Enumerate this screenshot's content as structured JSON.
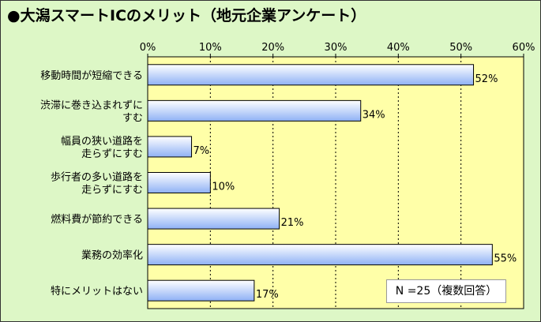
{
  "title": "●大潟スマートICのメリット（地元企業アンケート）",
  "note": "N =25（複数回答）",
  "colors": {
    "background": "#ddf7c6",
    "plot_area": "#ffffa8",
    "bar_top": "#ffffff",
    "bar_bottom": "#8fb1f5",
    "bar_border": "#000000"
  },
  "chart_data": {
    "type": "bar",
    "orientation": "horizontal",
    "categories": [
      [
        "移動時間が短縮できる"
      ],
      [
        "渋滞に巻き込まれずに",
        "すむ"
      ],
      [
        "幅員の狭い道路を",
        "走らずにすむ"
      ],
      [
        "歩行者の多い道路を",
        "走らずにすむ"
      ],
      [
        "燃料費が節約できる"
      ],
      [
        "業務の効率化"
      ],
      [
        "特にメリットはない"
      ]
    ],
    "values": [
      52,
      34,
      7,
      10,
      21,
      55,
      17
    ],
    "value_labels": [
      "52%",
      "34%",
      "7%",
      "10%",
      "21%",
      "55%",
      "17%"
    ],
    "xlim": [
      0,
      60
    ],
    "ticks": [
      0,
      10,
      20,
      30,
      40,
      50,
      60
    ],
    "tick_labels": [
      "0%",
      "10%",
      "20%",
      "30%",
      "40%",
      "50%",
      "60%"
    ],
    "axis_position": "top",
    "grid": true
  }
}
